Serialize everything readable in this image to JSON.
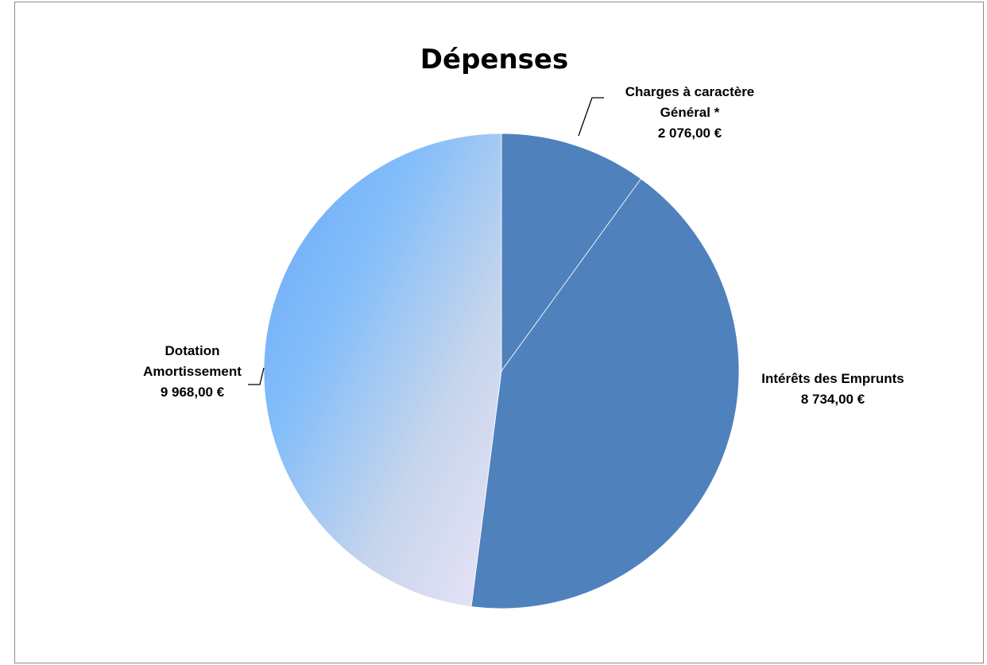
{
  "chart_data": {
    "type": "pie",
    "title": "Dépenses",
    "slices": [
      {
        "label_lines": [
          "Charges à caractère",
          "Général *"
        ],
        "value": 2076.0,
        "value_text": "2 076,00 €",
        "color": "#4f81bd"
      },
      {
        "label_lines": [
          "Intérêts des Emprunts"
        ],
        "value": 8734.0,
        "value_text": "8 734,00 €",
        "color": "#4f81bd"
      },
      {
        "label_lines": [
          "Dotation",
          "Amortissement"
        ],
        "value": 9968.0,
        "value_text": "9 968,00 €",
        "color": "#7eb6f7"
      }
    ],
    "gradient_colors": [
      "#6aa6f8",
      "#82bdfa",
      "#c5d5ec",
      "#ece4f7"
    ]
  }
}
